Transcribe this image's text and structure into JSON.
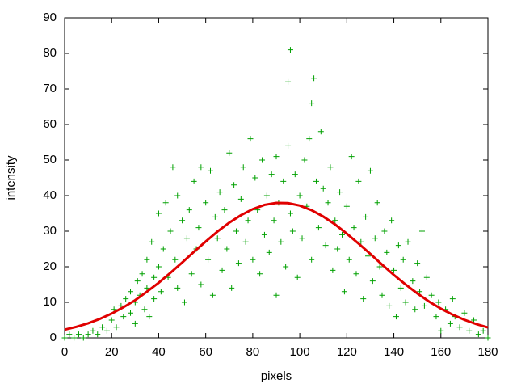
{
  "chart_data": {
    "type": "scatter",
    "x_label": "pixels",
    "y_label": "intensity",
    "xlim": [
      0,
      180
    ],
    "xticks": [
      0,
      20,
      40,
      60,
      80,
      100,
      120,
      140,
      160,
      180
    ],
    "ylim": [
      0,
      90
    ],
    "yticks": [
      0,
      10,
      20,
      30,
      40,
      50,
      60,
      70,
      80,
      90
    ],
    "grid": false,
    "series": [
      {
        "type": "points",
        "color": "#00a000",
        "x": [
          0,
          2,
          4,
          6,
          8,
          10,
          12,
          14,
          16,
          18,
          20,
          21,
          22,
          24,
          25,
          26,
          28,
          28,
          30,
          30,
          31,
          32,
          33,
          34,
          35,
          35,
          36,
          37,
          38,
          38,
          40,
          40,
          41,
          42,
          43,
          44,
          45,
          46,
          47,
          48,
          48,
          50,
          51,
          52,
          53,
          54,
          55,
          56,
          57,
          58,
          58,
          60,
          61,
          62,
          63,
          64,
          65,
          66,
          67,
          68,
          69,
          70,
          71,
          72,
          73,
          74,
          75,
          76,
          77,
          78,
          79,
          80,
          81,
          82,
          83,
          84,
          85,
          86,
          87,
          88,
          89,
          90,
          90,
          91,
          92,
          93,
          94,
          95,
          95,
          96,
          96,
          97,
          98,
          99,
          100,
          101,
          102,
          103,
          104,
          105,
          105,
          106,
          107,
          108,
          109,
          110,
          111,
          112,
          113,
          114,
          115,
          116,
          117,
          118,
          119,
          120,
          121,
          122,
          123,
          124,
          125,
          126,
          127,
          128,
          129,
          130,
          131,
          132,
          133,
          134,
          135,
          136,
          137,
          138,
          139,
          140,
          141,
          142,
          143,
          144,
          145,
          146,
          148,
          149,
          150,
          151,
          152,
          153,
          154,
          156,
          158,
          159,
          160,
          162,
          164,
          165,
          166,
          168,
          170,
          172,
          174,
          176,
          178,
          180
        ],
        "values": [
          0,
          1,
          0,
          1,
          0,
          1,
          2,
          1,
          3,
          2,
          5,
          8,
          3,
          9,
          6,
          11,
          7,
          13,
          10,
          4,
          16,
          12,
          18,
          8,
          22,
          14,
          6,
          27,
          17,
          11,
          20,
          35,
          13,
          25,
          38,
          17,
          30,
          48,
          22,
          40,
          14,
          33,
          10,
          28,
          36,
          18,
          44,
          25,
          31,
          48,
          15,
          38,
          22,
          47,
          12,
          34,
          28,
          41,
          19,
          36,
          25,
          52,
          14,
          43,
          30,
          21,
          39,
          48,
          27,
          33,
          56,
          22,
          45,
          36,
          18,
          50,
          29,
          40,
          24,
          46,
          33,
          12,
          51,
          38,
          27,
          44,
          20,
          54,
          72,
          81,
          35,
          30,
          46,
          17,
          40,
          28,
          50,
          37,
          56,
          22,
          66,
          73,
          44,
          31,
          58,
          42,
          26,
          38,
          48,
          19,
          33,
          25,
          41,
          29,
          13,
          37,
          22,
          51,
          31,
          18,
          44,
          27,
          11,
          34,
          23,
          47,
          16,
          28,
          38,
          20,
          12,
          30,
          24,
          9,
          33,
          19,
          6,
          26,
          14,
          22,
          10,
          27,
          16,
          8,
          21,
          13,
          30,
          9,
          17,
          12,
          6,
          10,
          2,
          8,
          4,
          11,
          6,
          3,
          7,
          2,
          5,
          1,
          2,
          0
        ]
      },
      {
        "type": "line",
        "color": "#e00000",
        "x": [
          0,
          5,
          10,
          15,
          20,
          25,
          30,
          35,
          40,
          45,
          50,
          55,
          60,
          65,
          70,
          75,
          80,
          85,
          90,
          95,
          100,
          105,
          110,
          115,
          120,
          125,
          130,
          135,
          140,
          145,
          150,
          155,
          160,
          165,
          170,
          175,
          180
        ],
        "values": [
          2.31,
          3.1,
          4.11,
          5.34,
          6.84,
          8.61,
          10.6,
          13.0,
          15.5,
          18.3,
          21.2,
          24.2,
          27.1,
          29.9,
          32.4,
          34.5,
          36.2,
          37.4,
          37.95,
          37.9,
          37.2,
          35.9,
          34.1,
          31.9,
          29.3,
          26.5,
          23.6,
          20.6,
          17.7,
          15.0,
          12.5,
          10.2,
          8.23,
          6.52,
          5.08,
          3.89,
          2.93
        ]
      }
    ]
  }
}
